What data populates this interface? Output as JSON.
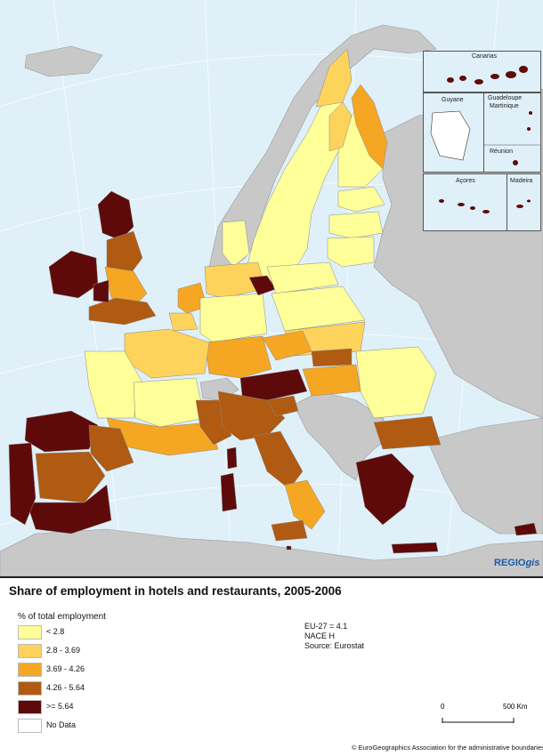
{
  "map": {
    "title": "Share of employment in hotels and restaurants, 2005-2006",
    "brand": {
      "part1": "REGIO",
      "part2": "gis"
    },
    "insets": {
      "canarias": "Canarias",
      "guyane": "Guyane",
      "guadeloupe": "Guadeloupe",
      "martinique": "Martinique",
      "reunion": "Réunion",
      "acores": "Açores",
      "madeira": "Madeira"
    }
  },
  "legend": {
    "title": "% of total employment",
    "classes": [
      {
        "label": "< 2.8",
        "color": "#ffff99"
      },
      {
        "label": "2.8 - 3.69",
        "color": "#fed35c"
      },
      {
        "label": "3.69 - 4.26",
        "color": "#f5a623"
      },
      {
        "label": "4.26 - 5.64",
        "color": "#b05a12"
      },
      {
        "label": ">= 5.64",
        "color": "#5e0a0a"
      },
      {
        "label": "No Data",
        "color": "#ffffff"
      }
    ]
  },
  "notes": {
    "eu27": "EU-27 = 4.1",
    "nace": "NACE H",
    "source": "Source: Eurostat"
  },
  "scale": {
    "zero": "0",
    "end": "500 Km"
  },
  "copyright": "© EuroGeographics Association for the administrative boundaries",
  "colors": {
    "sea": "#dff0f8",
    "nonEU": "#c8c8c8",
    "border": "#8a8a8a"
  }
}
